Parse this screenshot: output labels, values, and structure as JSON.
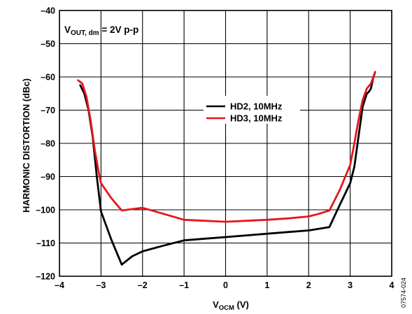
{
  "chart_data": {
    "type": "line",
    "xlabel": {
      "main": "V",
      "sub": "OCM",
      "suffix": " (V)"
    },
    "ylabel": "HARMONIC DISTORTION (dBc)",
    "xlim": [
      -4,
      4
    ],
    "ylim": [
      -120,
      -40
    ],
    "x_ticks": [
      -4,
      -3,
      -2,
      -1,
      0,
      1,
      2,
      3,
      4
    ],
    "y_ticks": [
      -120,
      -110,
      -100,
      -90,
      -80,
      -70,
      -60,
      -50,
      -40
    ],
    "grid": true,
    "legend_position": "center",
    "annotation": {
      "main1": "V",
      "sub1": "OUT",
      "mid": ", ",
      "sub2": "dm",
      "rest": " = 2V p-p"
    },
    "figure_id": "07574-024",
    "series": [
      {
        "name": "HD2, 10MHz",
        "color": "#000000",
        "x": [
          -3.5,
          -3.4,
          -3.3,
          -3.2,
          -3.1,
          -3.0,
          -2.75,
          -2.5,
          -2.25,
          -2.0,
          -1.5,
          -1.0,
          -0.5,
          0.0,
          0.5,
          1.0,
          1.5,
          2.0,
          2.25,
          2.5,
          2.75,
          3.0,
          3.1,
          3.2,
          3.3,
          3.4,
          3.45,
          3.5,
          3.55,
          3.6
        ],
        "y": [
          -62.5,
          -65.0,
          -70.0,
          -78.0,
          -90.0,
          -100.5,
          -109.0,
          -116.5,
          -114.0,
          -112.5,
          -110.8,
          -109.2,
          -108.7,
          -108.2,
          -107.7,
          -107.2,
          -106.7,
          -106.2,
          -105.7,
          -105.2,
          -98.5,
          -92.0,
          -87.0,
          -78.0,
          -69.0,
          -65.0,
          -64.5,
          -63.5,
          -60.5,
          -58.5
        ]
      },
      {
        "name": "HD3, 10MHz",
        "color": "#e8151b",
        "x": [
          -3.55,
          -3.45,
          -3.35,
          -3.25,
          -3.15,
          -3.05,
          -3.0,
          -2.75,
          -2.5,
          -2.25,
          -2.0,
          -1.5,
          -1.0,
          -0.5,
          0.0,
          0.5,
          1.0,
          1.5,
          2.0,
          2.25,
          2.5,
          2.75,
          3.0,
          3.1,
          3.2,
          3.3,
          3.4,
          3.5,
          3.6
        ],
        "y": [
          -61.0,
          -62.0,
          -66.0,
          -73.0,
          -82.0,
          -89.0,
          -92.0,
          -96.5,
          -100.2,
          -99.8,
          -99.4,
          -101.2,
          -103.0,
          -103.3,
          -103.6,
          -103.3,
          -103.0,
          -102.6,
          -102.0,
          -101.2,
          -100.2,
          -94.0,
          -86.5,
          -80.0,
          -73.0,
          -67.0,
          -63.5,
          -62.0,
          -58.5
        ]
      }
    ]
  }
}
